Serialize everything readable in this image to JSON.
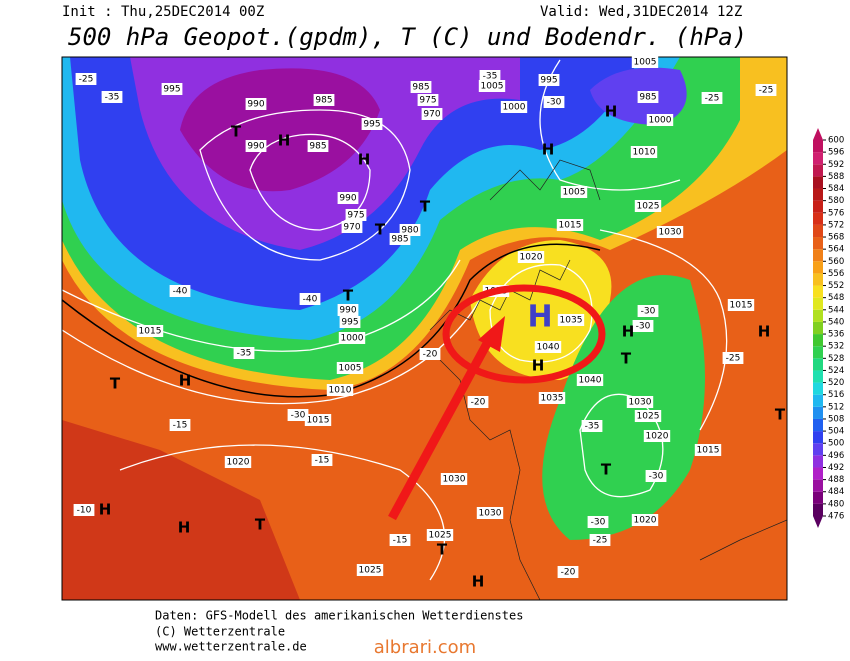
{
  "header": {
    "init": "Init : Thu,25DEC2014 00Z",
    "valid": "Valid: Wed,31DEC2014 12Z",
    "title": "500 hPa Geopot.(gpdm), T (C) und Bodendr. (hPa)"
  },
  "map_labels": [
    "995",
    "990",
    "985",
    "985",
    "975",
    "970",
    "1005",
    "995",
    "1005",
    "985",
    "1000",
    "1000",
    "995",
    "985",
    "990",
    "990",
    "975",
    "970",
    "980",
    "985",
    "1010",
    "1005",
    "1015",
    "1025",
    "1030",
    "1020",
    "1025",
    "1035",
    "1040",
    "1040",
    "1035",
    "1030",
    "1025",
    "1020",
    "1015",
    "1015",
    "1015",
    "1000",
    "1005",
    "990",
    "995",
    "1010",
    "1015",
    "1020",
    "1030",
    "1030",
    "1025",
    "1025",
    "1020",
    "-25",
    "-35",
    "-40",
    "-40",
    "-35",
    "-30",
    "-15",
    "-15",
    "-10",
    "-15",
    "-20",
    "-20",
    "-20",
    "-30",
    "-30",
    "-35",
    "-30",
    "-30",
    "-25",
    "-25",
    "-25",
    "-25",
    "-30",
    "-35",
    "H",
    "T",
    "T",
    "H",
    "H",
    "T",
    "T",
    "T",
    "H",
    "H",
    "T",
    "H",
    "T",
    "H",
    "T",
    "H",
    "H",
    "T",
    "T",
    "H",
    "H"
  ],
  "annotation_letter": "H",
  "colorbar": {
    "ticks": [
      476,
      480,
      484,
      488,
      492,
      496,
      500,
      504,
      508,
      512,
      516,
      520,
      524,
      528,
      532,
      536,
      540,
      544,
      548,
      552,
      556,
      560,
      564,
      568,
      572,
      576,
      580,
      584,
      588,
      592,
      596,
      600
    ],
    "colors": [
      "#5a0060",
      "#7a007a",
      "#9a10a0",
      "#b020c8",
      "#9030e0",
      "#6040f0",
      "#3040f0",
      "#2060f0",
      "#2090f0",
      "#20b8f0",
      "#20d8e0",
      "#20e0b0",
      "#20d880",
      "#30d050",
      "#40c830",
      "#80d020",
      "#b0e020",
      "#e0e820",
      "#f8e020",
      "#f8c020",
      "#f8a018",
      "#f08018",
      "#e86018",
      "#e04818",
      "#d83018",
      "#c82018",
      "#b81818",
      "#a81020",
      "#c01850",
      "#d02070",
      "#c01060"
    ]
  },
  "footer": {
    "line1": "Daten: GFS-Modell des amerikanischen Wetterdienstes",
    "line2": "(C) Wetterzentrale",
    "line3": "www.wetterzentrale.de",
    "watermark": "albrari.com"
  }
}
